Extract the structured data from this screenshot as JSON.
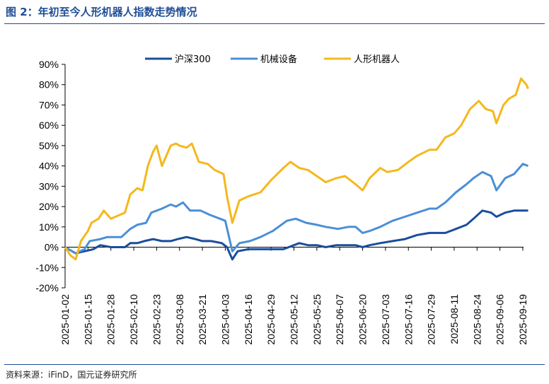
{
  "figure_title": "图 2：年初至今人形机器人指数走势情况",
  "source_note": "资料来源：iFinD，国元证券研究所",
  "chart_data": {
    "type": "line",
    "title": "",
    "xlabel": "",
    "ylabel": "",
    "ylim": [
      -0.2,
      0.9
    ],
    "y_ticks": [
      "-20%",
      "-10%",
      "0%",
      "10%",
      "20%",
      "30%",
      "40%",
      "50%",
      "60%",
      "70%",
      "80%",
      "90%"
    ],
    "x_ticks": [
      "2025-01-02",
      "2025-01-15",
      "2025-01-28",
      "2025-02-10",
      "2025-02-23",
      "2025-03-08",
      "2025-03-21",
      "2025-04-03",
      "2025-04-16",
      "2025-04-29",
      "2025-05-12",
      "2025-05-25",
      "2025-06-07",
      "2025-06-20",
      "2025-07-03",
      "2025-07-16",
      "2025-07-29",
      "2025-08-11",
      "2025-08-24",
      "2025-09-06",
      "2025-09-19"
    ],
    "legend_position": "top",
    "grid": false,
    "series": [
      {
        "name": "沪深300",
        "color": "#1a4d9c",
        "points": [
          [
            "2025-01-02",
            0.0
          ],
          [
            "2025-01-08",
            -0.03
          ],
          [
            "2025-01-13",
            -0.02
          ],
          [
            "2025-01-18",
            -0.01
          ],
          [
            "2025-01-22",
            0.01
          ],
          [
            "2025-01-28",
            0.0
          ],
          [
            "2025-02-05",
            0.0
          ],
          [
            "2025-02-08",
            0.02
          ],
          [
            "2025-02-12",
            0.02
          ],
          [
            "2025-02-16",
            0.03
          ],
          [
            "2025-02-21",
            0.04
          ],
          [
            "2025-02-26",
            0.03
          ],
          [
            "2025-03-03",
            0.03
          ],
          [
            "2025-03-07",
            0.04
          ],
          [
            "2025-03-12",
            0.05
          ],
          [
            "2025-03-17",
            0.04
          ],
          [
            "2025-03-21",
            0.03
          ],
          [
            "2025-03-26",
            0.03
          ],
          [
            "2025-04-01",
            0.02
          ],
          [
            "2025-04-04",
            0.0
          ],
          [
            "2025-04-07",
            -0.06
          ],
          [
            "2025-04-10",
            -0.02
          ],
          [
            "2025-04-16",
            -0.01
          ],
          [
            "2025-04-23",
            -0.01
          ],
          [
            "2025-04-30",
            -0.01
          ],
          [
            "2025-05-06",
            -0.01
          ],
          [
            "2025-05-12",
            0.01
          ],
          [
            "2025-05-15",
            0.02
          ],
          [
            "2025-05-20",
            0.01
          ],
          [
            "2025-05-25",
            0.01
          ],
          [
            "2025-05-30",
            0.0
          ],
          [
            "2025-06-05",
            0.01
          ],
          [
            "2025-06-11",
            0.01
          ],
          [
            "2025-06-16",
            0.01
          ],
          [
            "2025-06-20",
            0.0
          ],
          [
            "2025-06-24",
            0.01
          ],
          [
            "2025-06-30",
            0.02
          ],
          [
            "2025-07-07",
            0.03
          ],
          [
            "2025-07-14",
            0.04
          ],
          [
            "2025-07-21",
            0.06
          ],
          [
            "2025-07-28",
            0.07
          ],
          [
            "2025-08-01",
            0.07
          ],
          [
            "2025-08-06",
            0.07
          ],
          [
            "2025-08-12",
            0.09
          ],
          [
            "2025-08-18",
            0.11
          ],
          [
            "2025-08-22",
            0.14
          ],
          [
            "2025-08-27",
            0.18
          ],
          [
            "2025-09-01",
            0.17
          ],
          [
            "2025-09-04",
            0.15
          ],
          [
            "2025-09-09",
            0.17
          ],
          [
            "2025-09-14",
            0.18
          ],
          [
            "2025-09-19",
            0.18
          ],
          [
            "2025-09-22",
            0.18
          ]
        ]
      },
      {
        "name": "机械设备",
        "color": "#4a8fd6",
        "points": [
          [
            "2025-01-02",
            0.0
          ],
          [
            "2025-01-08",
            -0.03
          ],
          [
            "2025-01-13",
            -0.01
          ],
          [
            "2025-01-16",
            0.03
          ],
          [
            "2025-01-22",
            0.04
          ],
          [
            "2025-01-26",
            0.05
          ],
          [
            "2025-02-03",
            0.05
          ],
          [
            "2025-02-08",
            0.09
          ],
          [
            "2025-02-12",
            0.11
          ],
          [
            "2025-02-17",
            0.12
          ],
          [
            "2025-02-20",
            0.17
          ],
          [
            "2025-02-26",
            0.19
          ],
          [
            "2025-03-03",
            0.21
          ],
          [
            "2025-03-06",
            0.2
          ],
          [
            "2025-03-10",
            0.22
          ],
          [
            "2025-03-14",
            0.18
          ],
          [
            "2025-03-20",
            0.18
          ],
          [
            "2025-03-25",
            0.16
          ],
          [
            "2025-03-31",
            0.14
          ],
          [
            "2025-04-03",
            0.13
          ],
          [
            "2025-04-07",
            -0.02
          ],
          [
            "2025-04-11",
            0.02
          ],
          [
            "2025-04-17",
            0.03
          ],
          [
            "2025-04-23",
            0.05
          ],
          [
            "2025-04-30",
            0.08
          ],
          [
            "2025-05-08",
            0.13
          ],
          [
            "2025-05-13",
            0.14
          ],
          [
            "2025-05-19",
            0.12
          ],
          [
            "2025-05-25",
            0.11
          ],
          [
            "2025-05-30",
            0.1
          ],
          [
            "2025-06-06",
            0.09
          ],
          [
            "2025-06-12",
            0.1
          ],
          [
            "2025-06-16",
            0.1
          ],
          [
            "2025-06-20",
            0.07
          ],
          [
            "2025-06-24",
            0.08
          ],
          [
            "2025-06-30",
            0.1
          ],
          [
            "2025-07-07",
            0.13
          ],
          [
            "2025-07-14",
            0.15
          ],
          [
            "2025-07-21",
            0.17
          ],
          [
            "2025-07-28",
            0.19
          ],
          [
            "2025-08-01",
            0.19
          ],
          [
            "2025-08-06",
            0.22
          ],
          [
            "2025-08-12",
            0.27
          ],
          [
            "2025-08-18",
            0.31
          ],
          [
            "2025-08-22",
            0.34
          ],
          [
            "2025-08-27",
            0.37
          ],
          [
            "2025-09-01",
            0.35
          ],
          [
            "2025-09-04",
            0.28
          ],
          [
            "2025-09-09",
            0.34
          ],
          [
            "2025-09-14",
            0.36
          ],
          [
            "2025-09-19",
            0.41
          ],
          [
            "2025-09-22",
            0.4
          ]
        ]
      },
      {
        "name": "人形机器人",
        "color": "#f5b81c",
        "points": [
          [
            "2025-01-02",
            0.0
          ],
          [
            "2025-01-05",
            -0.04
          ],
          [
            "2025-01-08",
            -0.06
          ],
          [
            "2025-01-11",
            0.03
          ],
          [
            "2025-01-15",
            0.08
          ],
          [
            "2025-01-17",
            0.12
          ],
          [
            "2025-01-21",
            0.14
          ],
          [
            "2025-01-24",
            0.18
          ],
          [
            "2025-01-28",
            0.14
          ],
          [
            "2025-02-05",
            0.17
          ],
          [
            "2025-02-08",
            0.26
          ],
          [
            "2025-02-12",
            0.29
          ],
          [
            "2025-02-15",
            0.28
          ],
          [
            "2025-02-18",
            0.4
          ],
          [
            "2025-02-21",
            0.47
          ],
          [
            "2025-02-23",
            0.5
          ],
          [
            "2025-02-26",
            0.4
          ],
          [
            "2025-03-03",
            0.5
          ],
          [
            "2025-03-06",
            0.51
          ],
          [
            "2025-03-08",
            0.5
          ],
          [
            "2025-03-12",
            0.49
          ],
          [
            "2025-03-15",
            0.51
          ],
          [
            "2025-03-19",
            0.42
          ],
          [
            "2025-03-24",
            0.41
          ],
          [
            "2025-03-28",
            0.38
          ],
          [
            "2025-04-02",
            0.36
          ],
          [
            "2025-04-04",
            0.25
          ],
          [
            "2025-04-07",
            0.12
          ],
          [
            "2025-04-11",
            0.23
          ],
          [
            "2025-04-16",
            0.25
          ],
          [
            "2025-04-23",
            0.27
          ],
          [
            "2025-04-29",
            0.33
          ],
          [
            "2025-05-06",
            0.39
          ],
          [
            "2025-05-10",
            0.42
          ],
          [
            "2025-05-15",
            0.39
          ],
          [
            "2025-05-20",
            0.38
          ],
          [
            "2025-05-25",
            0.35
          ],
          [
            "2025-05-30",
            0.32
          ],
          [
            "2025-06-05",
            0.34
          ],
          [
            "2025-06-10",
            0.35
          ],
          [
            "2025-06-16",
            0.31
          ],
          [
            "2025-06-20",
            0.28
          ],
          [
            "2025-06-24",
            0.34
          ],
          [
            "2025-06-30",
            0.39
          ],
          [
            "2025-07-04",
            0.37
          ],
          [
            "2025-07-10",
            0.38
          ],
          [
            "2025-07-16",
            0.42
          ],
          [
            "2025-07-21",
            0.45
          ],
          [
            "2025-07-28",
            0.48
          ],
          [
            "2025-08-01",
            0.48
          ],
          [
            "2025-08-06",
            0.54
          ],
          [
            "2025-08-11",
            0.56
          ],
          [
            "2025-08-15",
            0.6
          ],
          [
            "2025-08-20",
            0.68
          ],
          [
            "2025-08-25",
            0.72
          ],
          [
            "2025-08-29",
            0.68
          ],
          [
            "2025-09-02",
            0.67
          ],
          [
            "2025-09-04",
            0.61
          ],
          [
            "2025-09-08",
            0.7
          ],
          [
            "2025-09-11",
            0.73
          ],
          [
            "2025-09-15",
            0.75
          ],
          [
            "2025-09-18",
            0.83
          ],
          [
            "2025-09-21",
            0.8
          ],
          [
            "2025-09-22",
            0.78
          ]
        ]
      }
    ]
  }
}
